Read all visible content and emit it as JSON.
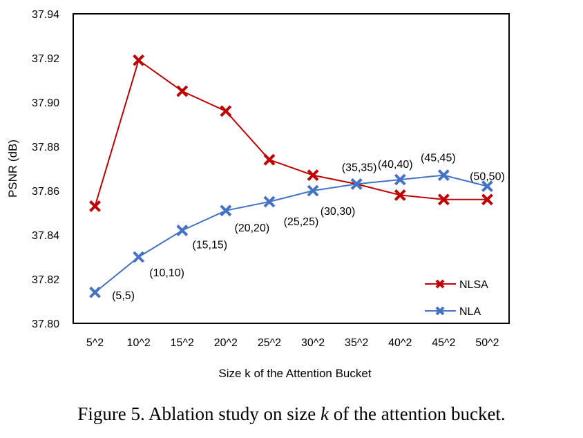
{
  "chart_data": {
    "type": "line",
    "title": "",
    "xlabel": "Size k of the Attention Bucket",
    "ylabel": "PSNR (dB)",
    "categories": [
      "5^2",
      "10^2",
      "15^2",
      "20^2",
      "25^2",
      "30^2",
      "35^2",
      "40^2",
      "45^2",
      "50^2"
    ],
    "ylim": [
      37.8,
      37.94
    ],
    "yticks": [
      "37.80",
      "37.82",
      "37.84",
      "37.86",
      "37.88",
      "37.90",
      "37.92",
      "37.94"
    ],
    "grid": false,
    "legend": "bottom-right",
    "series": [
      {
        "name": "NLSA",
        "color": "#C00000",
        "marker": "x",
        "values": [
          37.853,
          37.919,
          37.905,
          37.896,
          37.874,
          37.867,
          37.863,
          37.858,
          37.856,
          37.856
        ]
      },
      {
        "name": "NLA",
        "color": "#4472C4",
        "marker": "x",
        "values": [
          37.814,
          37.83,
          37.842,
          37.851,
          37.855,
          37.86,
          37.863,
          37.865,
          37.867,
          37.862
        ],
        "data_labels": [
          "(5,5)",
          "(10,10)",
          "(15,15)",
          "(20,20)",
          "(25,25)",
          "(30,30)",
          "(35,35)",
          "(40,40)",
          "(45,45)",
          "(50,50)"
        ]
      }
    ]
  },
  "caption": {
    "prefix": "Figure 5. Ablation study on size ",
    "var": "k",
    "suffix": " of the attention bucket."
  }
}
